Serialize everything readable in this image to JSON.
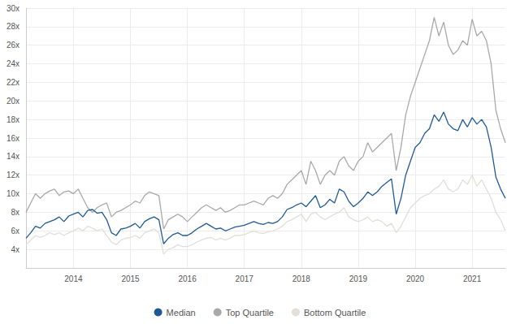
{
  "chart_data": {
    "type": "line",
    "categories": [
      null,
      null,
      null,
      null,
      null,
      null,
      null,
      null,
      null,
      null,
      "2014",
      null,
      null,
      null,
      null,
      null,
      null,
      null,
      null,
      null,
      null,
      null,
      "2015",
      null,
      null,
      null,
      null,
      null,
      null,
      null,
      null,
      null,
      null,
      null,
      "2016",
      null,
      null,
      null,
      null,
      null,
      null,
      null,
      null,
      null,
      null,
      null,
      "2017",
      null,
      null,
      null,
      null,
      null,
      null,
      null,
      null,
      null,
      null,
      null,
      "2018",
      null,
      null,
      null,
      null,
      null,
      null,
      null,
      null,
      null,
      null,
      null,
      "2019",
      null,
      null,
      null,
      null,
      null,
      null,
      null,
      null,
      null,
      null,
      null,
      "2020",
      null,
      null,
      null,
      null,
      null,
      null,
      null,
      null,
      null,
      null,
      null,
      "2021",
      null,
      null,
      null,
      null,
      null,
      null,
      null
    ],
    "series": [
      {
        "name": "Median",
        "color": "#1f5a96",
        "values": [
          5.2,
          5.8,
          6.5,
          6.3,
          6.8,
          7.0,
          7.2,
          7.5,
          7.0,
          7.6,
          7.8,
          8.0,
          7.5,
          8.2,
          8.3,
          7.9,
          8.0,
          7.2,
          5.8,
          5.5,
          6.2,
          6.3,
          6.5,
          6.8,
          6.3,
          7.0,
          7.3,
          7.5,
          7.2,
          4.6,
          5.2,
          5.6,
          5.8,
          5.5,
          5.5,
          5.8,
          6.2,
          6.5,
          6.8,
          6.5,
          6.2,
          6.3,
          6.0,
          6.2,
          6.4,
          6.5,
          6.6,
          6.8,
          7.0,
          6.8,
          6.7,
          6.9,
          6.8,
          7.0,
          7.5,
          8.3,
          8.5,
          8.8,
          9.0,
          8.6,
          9.2,
          9.8,
          8.5,
          8.8,
          9.4,
          9.0,
          10.5,
          10.2,
          9.2,
          8.6,
          9.0,
          9.5,
          10.2,
          9.8,
          10.2,
          10.8,
          11.2,
          11.6,
          7.8,
          9.5,
          12.0,
          13.5,
          15.0,
          15.5,
          16.5,
          17.0,
          18.5,
          17.8,
          18.8,
          17.5,
          17.0,
          16.8,
          18.0,
          17.2,
          18.2,
          17.5,
          18.0,
          17.2,
          15.0,
          11.8,
          10.5,
          9.5
        ]
      },
      {
        "name": "Top Quartile",
        "color": "#a9a9a9",
        "values": [
          8.0,
          9.0,
          10.0,
          9.5,
          10.0,
          10.3,
          10.5,
          9.8,
          10.2,
          10.3,
          10.0,
          10.5,
          9.5,
          8.5,
          8.0,
          8.5,
          8.8,
          9.0,
          7.5,
          8.0,
          8.2,
          8.5,
          8.8,
          9.2,
          9.0,
          9.8,
          10.2,
          10.0,
          9.8,
          6.2,
          7.2,
          7.5,
          7.8,
          7.5,
          7.0,
          7.5,
          8.0,
          8.5,
          8.8,
          8.5,
          8.2,
          8.5,
          8.0,
          8.2,
          8.5,
          8.8,
          8.8,
          9.0,
          9.2,
          9.0,
          8.8,
          9.5,
          9.8,
          9.5,
          10.0,
          11.0,
          11.5,
          12.0,
          12.5,
          11.0,
          13.5,
          12.5,
          11.0,
          12.0,
          12.5,
          12.0,
          13.5,
          14.0,
          13.0,
          12.5,
          13.5,
          14.0,
          15.5,
          14.5,
          15.0,
          15.5,
          16.0,
          16.5,
          12.5,
          15.0,
          18.5,
          20.5,
          22.0,
          23.5,
          25.0,
          26.5,
          29.0,
          27.0,
          28.5,
          26.0,
          25.0,
          25.5,
          26.5,
          26.0,
          28.8,
          27.0,
          27.5,
          26.5,
          24.0,
          19.0,
          17.0,
          15.5
        ]
      },
      {
        "name": "Bottom Quartile",
        "color": "#e2dfdb",
        "values": [
          4.5,
          5.0,
          5.5,
          5.3,
          5.5,
          5.8,
          5.6,
          5.8,
          5.5,
          5.8,
          6.0,
          6.3,
          6.0,
          6.5,
          6.3,
          6.0,
          6.2,
          5.5,
          4.8,
          4.5,
          5.0,
          5.2,
          5.3,
          5.5,
          5.2,
          5.8,
          6.0,
          6.2,
          5.8,
          3.5,
          4.0,
          4.2,
          4.5,
          4.3,
          4.3,
          4.5,
          4.8,
          5.0,
          5.2,
          5.3,
          5.0,
          5.2,
          5.0,
          5.2,
          5.5,
          5.5,
          5.6,
          5.8,
          6.0,
          5.8,
          5.7,
          5.9,
          6.0,
          6.2,
          6.5,
          7.0,
          7.2,
          7.5,
          7.8,
          7.0,
          7.8,
          8.0,
          7.5,
          7.2,
          7.5,
          7.8,
          8.0,
          8.5,
          7.5,
          7.2,
          7.0,
          7.2,
          7.5,
          7.0,
          7.2,
          7.0,
          6.5,
          6.8,
          5.8,
          6.5,
          7.5,
          8.5,
          9.0,
          9.5,
          9.8,
          10.0,
          10.5,
          10.8,
          11.5,
          10.5,
          10.2,
          10.5,
          11.5,
          11.0,
          12.0,
          10.8,
          11.5,
          10.5,
          9.5,
          8.0,
          7.2,
          6.0
        ]
      }
    ],
    "ylim": [
      2,
      30
    ],
    "yticks": [
      {
        "value": 4,
        "label": "4x"
      },
      {
        "value": 6,
        "label": "6x"
      },
      {
        "value": 8,
        "label": "8x"
      },
      {
        "value": 10,
        "label": "10x"
      },
      {
        "value": 12,
        "label": "12x"
      },
      {
        "value": 14,
        "label": "14x"
      },
      {
        "value": 16,
        "label": "16x"
      },
      {
        "value": 18,
        "label": "18x"
      },
      {
        "value": 20,
        "label": "20x"
      },
      {
        "value": 22,
        "label": "22x"
      },
      {
        "value": 24,
        "label": "24x"
      },
      {
        "value": 26,
        "label": "26x"
      },
      {
        "value": 28,
        "label": "28x"
      },
      {
        "value": 30,
        "label": "30x"
      }
    ],
    "grid": true,
    "legend": "bottom"
  }
}
